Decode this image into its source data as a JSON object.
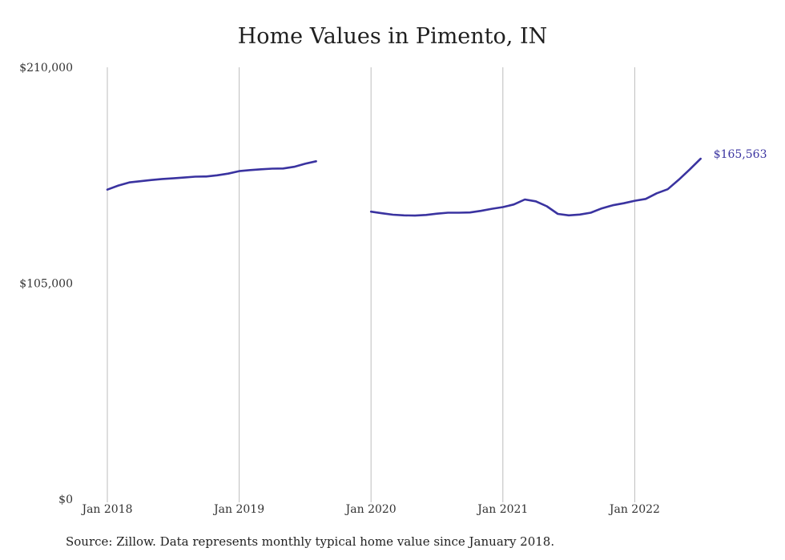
{
  "chart_data": {
    "type": "line",
    "title": "Home Values in Pimento, IN",
    "xlabel": "",
    "ylabel": "",
    "ylim": [
      0,
      210000
    ],
    "y_ticks": [
      "$0",
      "$105,000",
      "$210,000"
    ],
    "y_tick_values": [
      0,
      105000,
      210000
    ],
    "x_ticks": [
      "Jan 2018",
      "Jan 2019",
      "Jan 2020",
      "Jan 2021",
      "Jan 2022"
    ],
    "x_tick_dates": [
      "2018-01",
      "2019-01",
      "2020-01",
      "2021-01",
      "2022-01"
    ],
    "grid": "vertical",
    "line_color": "#3a33a0",
    "end_label": "$165,563",
    "series": [
      {
        "segments": [
          [
            [
              "2018-01",
              150500
            ],
            [
              "2018-02",
              152500
            ],
            [
              "2018-03",
              154000
            ],
            [
              "2018-04",
              154600
            ],
            [
              "2018-05",
              155200
            ],
            [
              "2018-06",
              155700
            ],
            [
              "2018-07",
              156000
            ],
            [
              "2018-08",
              156400
            ],
            [
              "2018-09",
              156800
            ],
            [
              "2018-10",
              156900
            ],
            [
              "2018-11",
              157500
            ],
            [
              "2018-12",
              158300
            ],
            [
              "2019-01",
              159500
            ],
            [
              "2019-02",
              160000
            ],
            [
              "2019-03",
              160400
            ],
            [
              "2019-04",
              160700
            ],
            [
              "2019-05",
              160800
            ],
            [
              "2019-06",
              161600
            ],
            [
              "2019-07",
              163100
            ],
            [
              "2019-08",
              164300
            ]
          ],
          [
            [
              "2020-01",
              139800
            ],
            [
              "2020-02",
              139000
            ],
            [
              "2020-03",
              138300
            ],
            [
              "2020-04",
              138000
            ],
            [
              "2020-05",
              137900
            ],
            [
              "2020-06",
              138200
            ],
            [
              "2020-07",
              138800
            ],
            [
              "2020-08",
              139300
            ],
            [
              "2020-09",
              139300
            ],
            [
              "2020-10",
              139400
            ],
            [
              "2020-11",
              140200
            ],
            [
              "2020-12",
              141200
            ],
            [
              "2021-01",
              142000
            ],
            [
              "2021-02",
              143300
            ],
            [
              "2021-03",
              145700
            ],
            [
              "2021-04",
              144800
            ],
            [
              "2021-05",
              142400
            ],
            [
              "2021-06",
              138700
            ],
            [
              "2021-07",
              138000
            ],
            [
              "2021-08",
              138400
            ],
            [
              "2021-09",
              139300
            ],
            [
              "2021-10",
              141400
            ],
            [
              "2021-11",
              142900
            ],
            [
              "2021-12",
              143900
            ],
            [
              "2022-01",
              145100
            ],
            [
              "2022-02",
              146000
            ],
            [
              "2022-03",
              148700
            ],
            [
              "2022-04",
              150700
            ],
            [
              "2022-05",
              155300
            ],
            [
              "2022-06",
              160300
            ],
            [
              "2022-07",
              165563
            ]
          ]
        ]
      }
    ]
  },
  "source_note": "Source: Zillow. Data represents monthly typical home value since January 2018."
}
